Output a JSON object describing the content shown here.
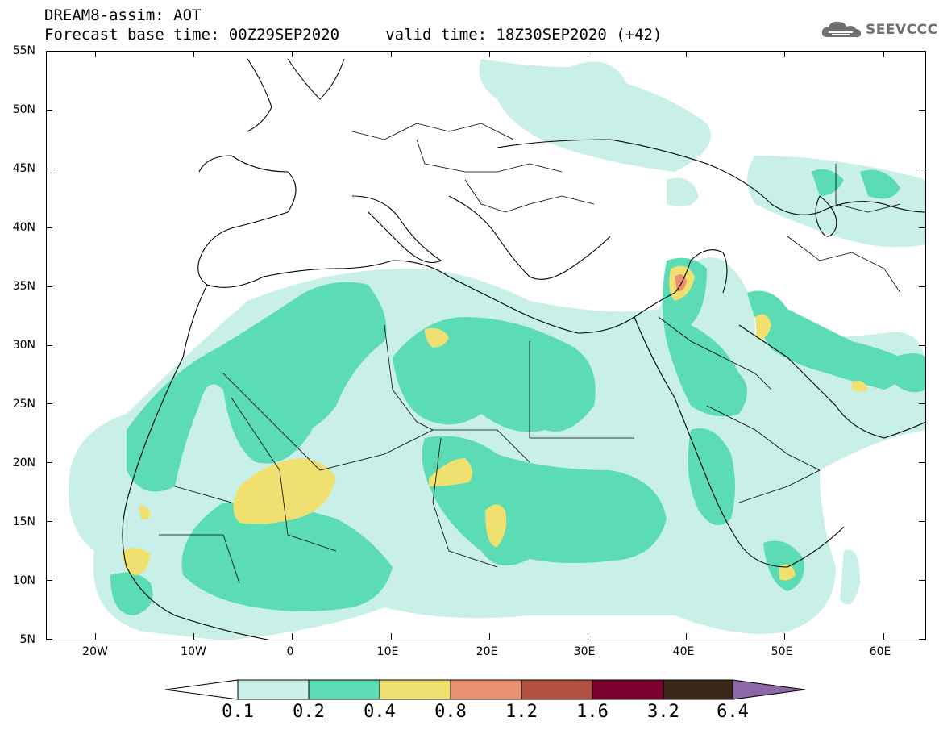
{
  "header": {
    "line1": "DREAM8-assim: AOT",
    "line2": "Forecast base time: 00Z29SEP2020     valid time: 18Z30SEP2020 (+42)",
    "logo_text": "SEEVCCC"
  },
  "axes": {
    "lat_labels": [
      "55N",
      "50N",
      "45N",
      "40N",
      "35N",
      "30N",
      "25N",
      "20N",
      "15N",
      "10N",
      "5N"
    ],
    "lon_labels": [
      "20W",
      "10W",
      "0",
      "10E",
      "20E",
      "30E",
      "40E",
      "50E",
      "60E"
    ]
  },
  "colorbar": {
    "labels": [
      "0.1",
      "0.2",
      "0.4",
      "0.8",
      "1.2",
      "1.6",
      "3.2",
      "6.4"
    ],
    "colors": [
      "#ffffff",
      "#c8f0e8",
      "#5cdcb4",
      "#f0e070",
      "#e89070",
      "#b05040",
      "#7a0030",
      "#3a2818",
      "#8c68a8"
    ]
  },
  "field_colors": {
    "level_0_1": "#c8f0e8",
    "level_0_2": "#5cdcb4",
    "level_0_4": "#f0e070",
    "level_0_8": "#e89070",
    "level_1_2": "#b05040"
  }
}
